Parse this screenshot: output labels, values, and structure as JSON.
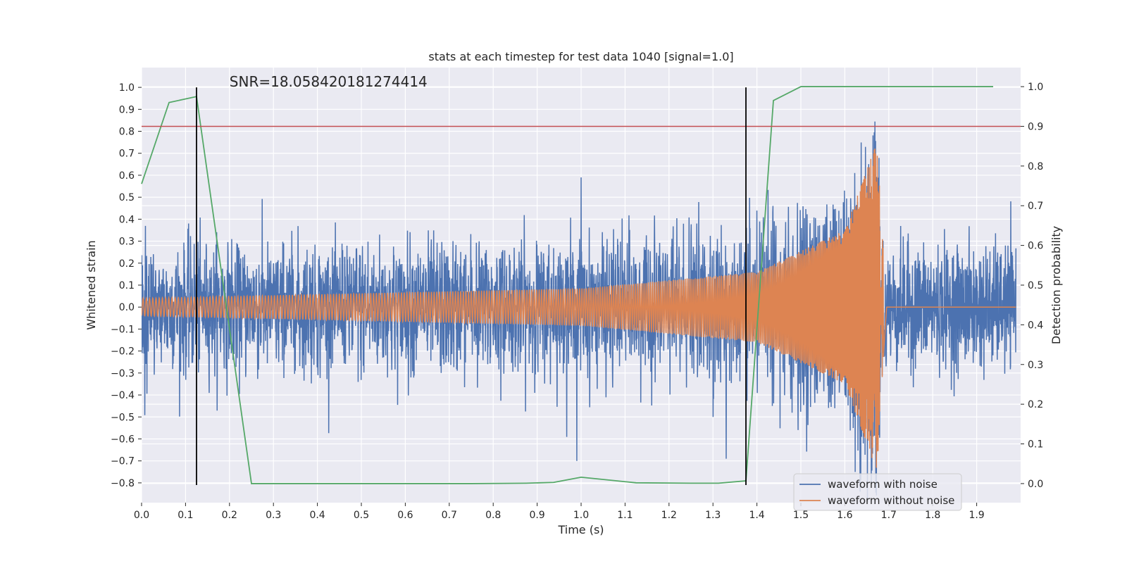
{
  "chart_data": {
    "type": "line",
    "title": "stats at each timestep for test data 1040 [signal=1.0]",
    "annotation": "SNR=18.058420181274414",
    "xlabel": "Time (s)",
    "ylabel": "Whitened strain",
    "y2label": "Detection probability",
    "xlim": [
      0.0,
      2.0
    ],
    "ylim": [
      -0.89,
      1.09
    ],
    "y2lim": [
      -0.048,
      1.048
    ],
    "x_ticks": [
      "0.0",
      "0.1",
      "0.2",
      "0.3",
      "0.4",
      "0.5",
      "0.6",
      "0.7",
      "0.8",
      "0.9",
      "1.0",
      "1.1",
      "1.2",
      "1.3",
      "1.4",
      "1.5",
      "1.6",
      "1.7",
      "1.8",
      "1.9"
    ],
    "y_ticks": [
      "1.0",
      "0.9",
      "0.8",
      "0.7",
      "0.6",
      "0.5",
      "0.4",
      "0.3",
      "0.2",
      "0.1",
      "0.0",
      "−0.1",
      "−0.2",
      "−0.3",
      "−0.4",
      "−0.5",
      "−0.6",
      "−0.7",
      "−0.8"
    ],
    "y2_ticks": [
      "1.0",
      "0.9",
      "0.8",
      "0.7",
      "0.6",
      "0.5",
      "0.4",
      "0.3",
      "0.2",
      "0.1",
      "0.0"
    ],
    "grid": true,
    "legend_position": "bottom-right",
    "colors": {
      "background": "#eaeaf2",
      "grid": "#ffffff",
      "noisy": "#4c72b0",
      "clean": "#dd8452",
      "probability": "#55a868",
      "threshold": "#c44e52",
      "markers": "#000000"
    },
    "series": [
      {
        "name": "waveform with noise",
        "axis": "left",
        "sample_rate": 2048,
        "noise_std": 0.18,
        "spikes": [
          {
            "x": 1.635,
            "y": 1.0
          },
          {
            "x": 1.635,
            "y": -0.84
          },
          {
            "x": 1.66,
            "y": -0.8
          },
          {
            "x": 0.99,
            "y": -0.7
          },
          {
            "x": 1.33,
            "y": -0.69
          },
          {
            "x": 1.0,
            "y": 0.59
          }
        ]
      },
      {
        "name": "waveform without noise",
        "axis": "left",
        "description_points": [
          {
            "x": 0.0,
            "amp": 0.04
          },
          {
            "x": 1.0,
            "amp": 0.085
          },
          {
            "x": 1.4,
            "amp": 0.16
          },
          {
            "x": 1.6,
            "amp": 0.35
          },
          {
            "x": 1.673,
            "amp": 0.75
          },
          {
            "x": 1.695,
            "amp": 0.0
          }
        ]
      },
      {
        "axis": "right",
        "x": [
          0.0,
          0.0625,
          0.125,
          0.25,
          0.375,
          0.5,
          0.625,
          0.75,
          0.875,
          0.9375,
          1.0,
          1.125,
          1.25,
          1.3125,
          1.375,
          1.4375,
          1.5,
          1.625,
          1.75,
          1.875,
          1.9375
        ],
        "values": [
          0.755,
          0.96,
          0.975,
          0.0,
          0.0,
          0.0,
          0.0,
          0.0,
          0.001,
          0.003,
          0.016,
          0.002,
          0.001,
          0.001,
          0.007,
          0.965,
          1.0,
          1.0,
          1.0,
          1.0,
          1.0
        ]
      }
    ],
    "threshold_y2": 0.9,
    "vertical_lines_x": [
      0.125,
      1.375
    ]
  }
}
